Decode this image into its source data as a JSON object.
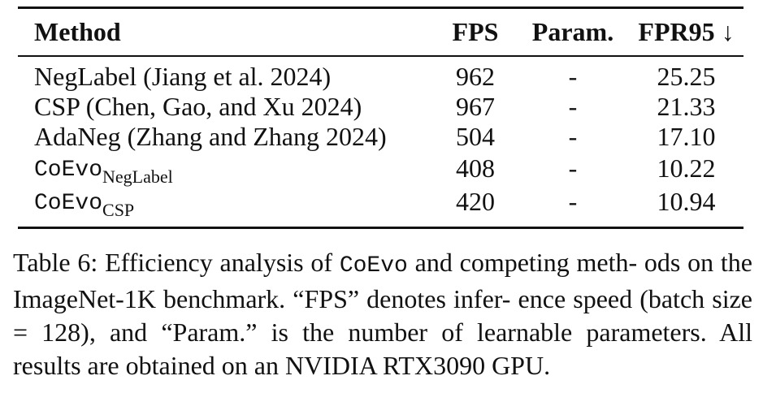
{
  "table": {
    "headers": {
      "method": "Method",
      "fps": "FPS",
      "param": "Param.",
      "fpr": "FPR95 ↓"
    },
    "rows": [
      {
        "method": "NegLabel (Jiang et al. 2024)",
        "fps": "962",
        "param": "-",
        "fpr": "25.25"
      },
      {
        "method": "CSP (Chen, Gao, and Xu 2024)",
        "fps": "967",
        "param": "-",
        "fpr": "21.33"
      },
      {
        "method": "AdaNeg (Zhang and Zhang 2024)",
        "fps": "504",
        "param": "-",
        "fpr": "17.10"
      },
      {
        "method": "CoEvo",
        "method_sub": "NegLabel",
        "fps": "408",
        "param": "-",
        "fpr": "10.22"
      },
      {
        "method": "CoEvo",
        "method_sub": "CSP",
        "fps": "420",
        "param": "-",
        "fpr": "10.94"
      }
    ]
  },
  "caption": {
    "prefix": "Table 6: Efficiency analysis of ",
    "name": "CoEvo",
    "suffix": " and competing meth- ods on the ImageNet-1K benchmark. “FPS” denotes infer- ence speed (batch size = 128), and “Param.” is the number of learnable parameters. All results are obtained on an NVIDIA RTX3090 GPU."
  }
}
